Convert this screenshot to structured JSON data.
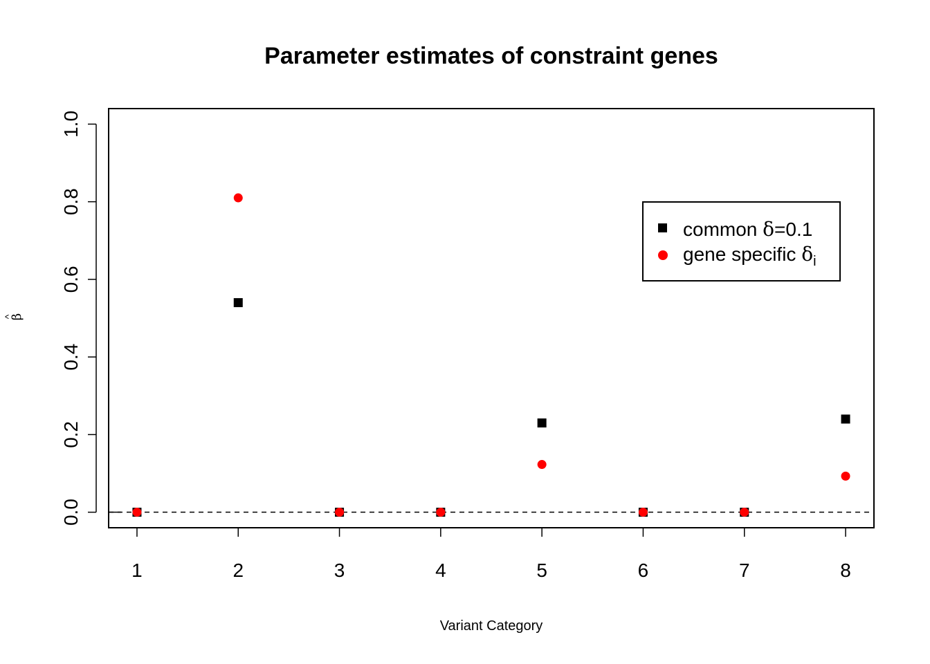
{
  "chart_data": {
    "type": "scatter",
    "title": "Parameter estimates of constraint genes",
    "xlabel": "Variant Category",
    "ylabel_symbol": "β",
    "ylabel_hat": "^",
    "x": [
      1,
      2,
      3,
      4,
      5,
      6,
      7,
      8
    ],
    "x_ticks": [
      "1",
      "2",
      "3",
      "4",
      "5",
      "6",
      "7",
      "8"
    ],
    "y_ticks": [
      "0.0",
      "0.2",
      "0.4",
      "0.6",
      "0.8",
      "1.0"
    ],
    "xlim": [
      0.72,
      8.28
    ],
    "ylim": [
      -0.04,
      1.04
    ],
    "reference_line": {
      "y": 0,
      "style": "dashed"
    },
    "legend_position": "top-right",
    "series": [
      {
        "name": "common δ=0.1",
        "legend_prefix": "common ",
        "legend_symbol": "δ",
        "legend_suffix": "=0.1",
        "legend_subscript": "",
        "marker": "square",
        "color": "#000000",
        "values": [
          0,
          0.54,
          0,
          0,
          0.23,
          0,
          0,
          0.24
        ]
      },
      {
        "name": "gene specific δi",
        "legend_prefix": "gene specific ",
        "legend_symbol": "δ",
        "legend_suffix": "",
        "legend_subscript": "i",
        "marker": "circle",
        "color": "#ff0000",
        "values": [
          0,
          0.81,
          0,
          0,
          0.123,
          0,
          0,
          0.093
        ]
      }
    ]
  }
}
